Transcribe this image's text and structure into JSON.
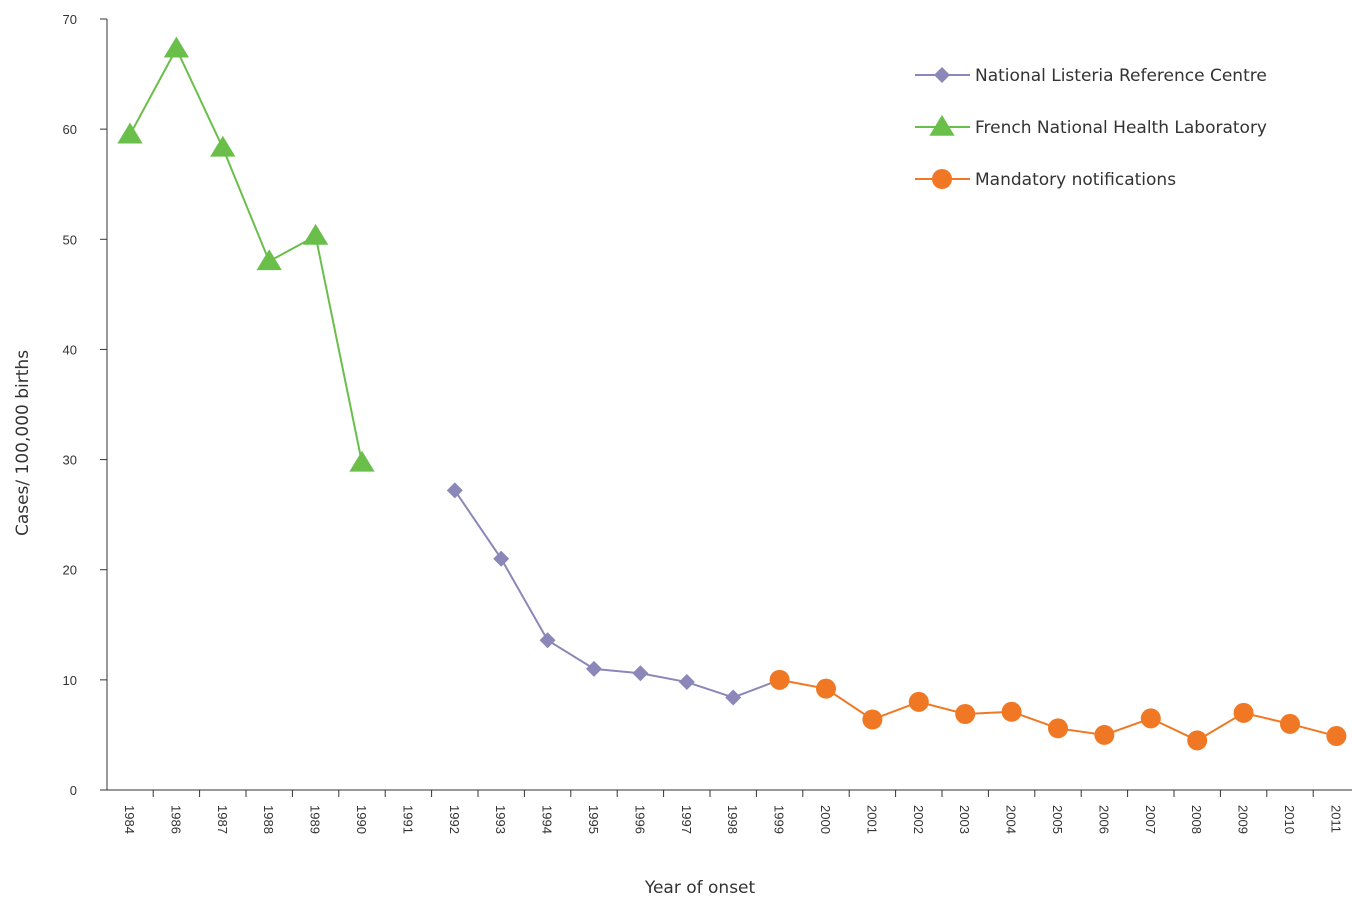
{
  "chart_data": {
    "type": "line",
    "title": "",
    "xlabel": "Year of onset",
    "ylabel": "Cases/ 100,000 births",
    "ylim": [
      0,
      70
    ],
    "yticks": [
      0,
      10,
      20,
      30,
      40,
      50,
      60,
      70
    ],
    "grid": false,
    "legend_position": "top-right",
    "categories": [
      "1984",
      "1986",
      "1987",
      "1988",
      "1989",
      "1990",
      "1991",
      "1992",
      "1993",
      "1994",
      "1995",
      "1996",
      "1997",
      "1998",
      "1999",
      "2000",
      "2001",
      "2002",
      "2003",
      "2004",
      "2005",
      "2006",
      "2007",
      "2008",
      "2009",
      "2010",
      "2011"
    ],
    "series": [
      {
        "name": "National Listeria Reference Centre",
        "marker": "diamond",
        "color": "#8b87b8",
        "values": [
          null,
          null,
          null,
          null,
          null,
          null,
          null,
          27.2,
          21,
          13.6,
          11,
          10.6,
          9.8,
          8.4,
          10,
          null,
          null,
          null,
          null,
          null,
          null,
          null,
          null,
          null,
          null,
          null,
          null
        ]
      },
      {
        "name": "French National Health Laboratory",
        "marker": "triangle",
        "color": "#6abf4b",
        "values": [
          59.5,
          67.3,
          58.3,
          48,
          50.3,
          29.7,
          null,
          null,
          null,
          null,
          null,
          null,
          null,
          null,
          null,
          null,
          null,
          null,
          null,
          null,
          null,
          null,
          null,
          null,
          null,
          null,
          null
        ]
      },
      {
        "name": "Mandatory notifications",
        "marker": "circle",
        "color": "#f07824",
        "values": [
          null,
          null,
          null,
          null,
          null,
          null,
          null,
          null,
          null,
          null,
          null,
          null,
          null,
          null,
          10,
          9.2,
          6.4,
          8,
          6.9,
          7.1,
          5.6,
          5,
          6.5,
          4.5,
          7,
          6,
          4.9
        ]
      }
    ]
  }
}
